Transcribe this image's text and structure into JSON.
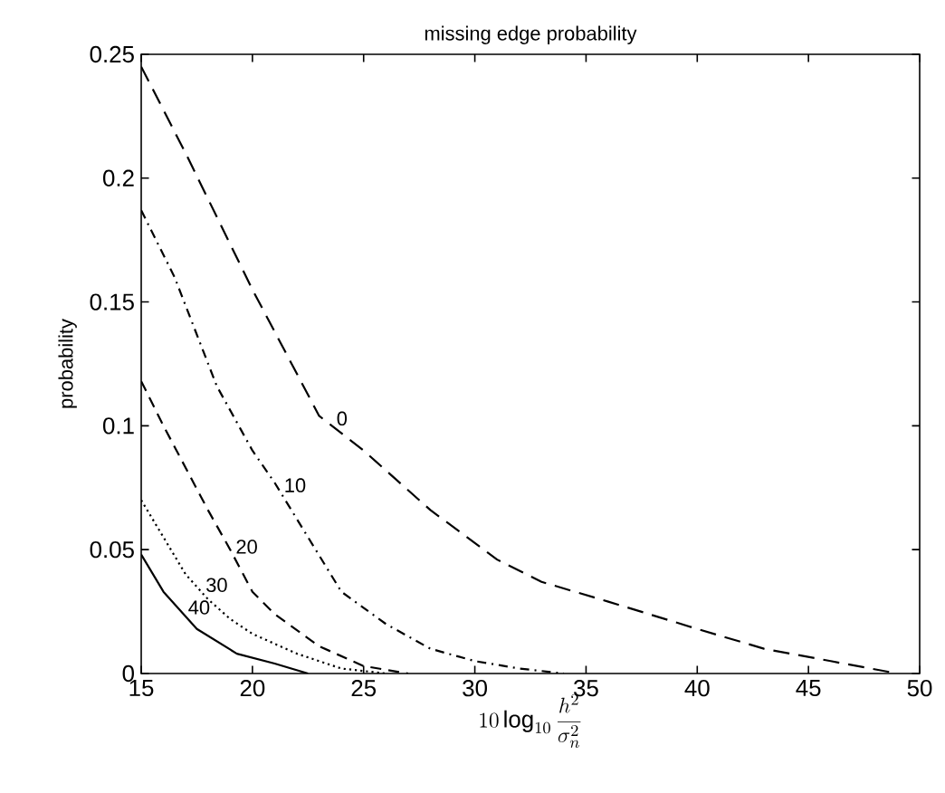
{
  "chart_data": {
    "type": "line",
    "title": "missing edge probability",
    "xlabel": "10\\log_{10}\\frac{h^{2}}{\\sigma_{n}^{2}}",
    "ylabel": "probability",
    "xlim": [
      15,
      50
    ],
    "ylim": [
      0,
      0.25
    ],
    "xticks": [
      15,
      20,
      25,
      30,
      35,
      40,
      45,
      50
    ],
    "yticks": [
      0,
      0.05,
      0.1,
      0.15,
      0.2,
      0.25
    ],
    "grid": false,
    "legend": false,
    "marker": "none",
    "series": [
      {
        "name": "0",
        "color": "#000000",
        "line_style": "dashed",
        "x": [
          15,
          17,
          20,
          23,
          25,
          28,
          31,
          33,
          36,
          40,
          43,
          46,
          49
        ],
        "values": [
          0.245,
          0.21,
          0.155,
          0.104,
          0.09,
          0.066,
          0.046,
          0.037,
          0.029,
          0.018,
          0.01,
          0.005,
          0
        ]
      },
      {
        "name": "10",
        "color": "#000000",
        "line_style": "dashdot",
        "x": [
          15,
          16.5,
          18.4,
          20,
          21,
          22.5,
          24,
          26,
          28,
          30,
          32,
          34
        ],
        "values": [
          0.187,
          0.16,
          0.116,
          0.09,
          0.077,
          0.055,
          0.033,
          0.02,
          0.01,
          0.005,
          0.002,
          0
        ]
      },
      {
        "name": "20",
        "color": "#000000",
        "line_style": "dashed",
        "x": [
          15,
          16,
          17,
          18,
          19,
          20,
          21,
          23,
          25,
          27
        ],
        "values": [
          0.118,
          0.1,
          0.083,
          0.066,
          0.05,
          0.033,
          0.024,
          0.011,
          0.003,
          0
        ]
      },
      {
        "name": "30",
        "color": "#000000",
        "line_style": "dotted",
        "x": [
          15,
          16,
          17,
          18,
          19,
          20,
          22,
          24,
          26
        ],
        "values": [
          0.07,
          0.055,
          0.04,
          0.03,
          0.022,
          0.016,
          0.008,
          0.002,
          0
        ]
      },
      {
        "name": "40",
        "color": "#000000",
        "line_style": "solid",
        "x": [
          15,
          16,
          17.5,
          19.3,
          21,
          22.5
        ],
        "values": [
          0.048,
          0.033,
          0.018,
          0.008,
          0.004,
          0
        ]
      }
    ]
  }
}
